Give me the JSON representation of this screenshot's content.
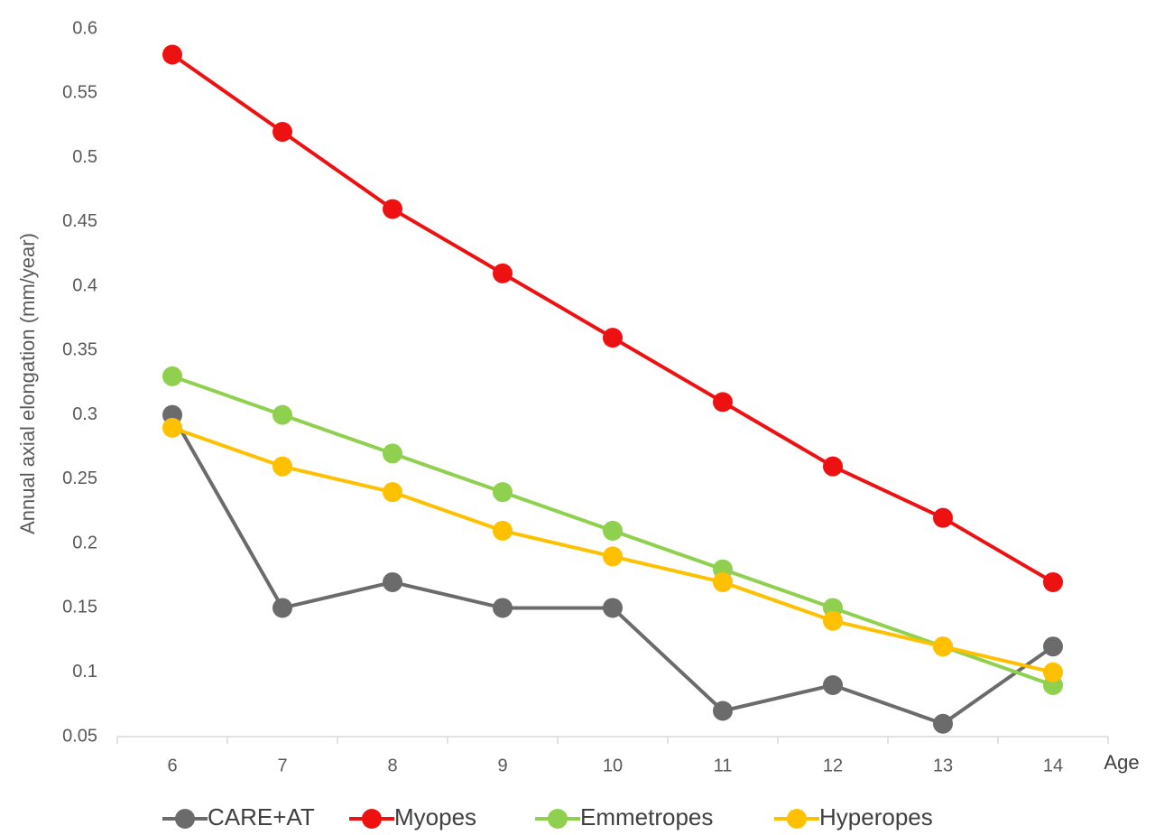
{
  "chart_data": {
    "type": "line",
    "y_label": "Annual axial elongation (mm/year)",
    "x_label": "Age",
    "categories": [
      "6",
      "7",
      "8",
      "9",
      "10",
      "11",
      "12",
      "13",
      "14"
    ],
    "series": [
      {
        "name": "CARE+AT",
        "color": "#6b6b6b",
        "values": [
          0.3,
          0.15,
          0.17,
          0.15,
          0.15,
          0.07,
          0.09,
          0.06,
          0.12
        ]
      },
      {
        "name": "Myopes",
        "color": "#ee1111",
        "values": [
          0.58,
          0.52,
          0.46,
          0.41,
          0.36,
          0.31,
          0.26,
          0.22,
          0.17
        ]
      },
      {
        "name": "Emmetropes",
        "color": "#8fd14f",
        "values": [
          0.33,
          0.3,
          0.27,
          0.24,
          0.21,
          0.18,
          0.15,
          0.12,
          0.09
        ]
      },
      {
        "name": "Hyperopes",
        "color": "#ffc000",
        "values": [
          0.29,
          0.26,
          0.24,
          0.21,
          0.19,
          0.17,
          0.14,
          0.12,
          0.1
        ]
      }
    ],
    "ylim": [
      0.05,
      0.6
    ],
    "yticks": [
      0.05,
      0.1,
      0.15,
      0.2,
      0.25,
      0.3,
      0.35,
      0.4,
      0.45,
      0.5,
      0.55,
      0.6
    ],
    "grid": false,
    "legend": "bottom"
  }
}
